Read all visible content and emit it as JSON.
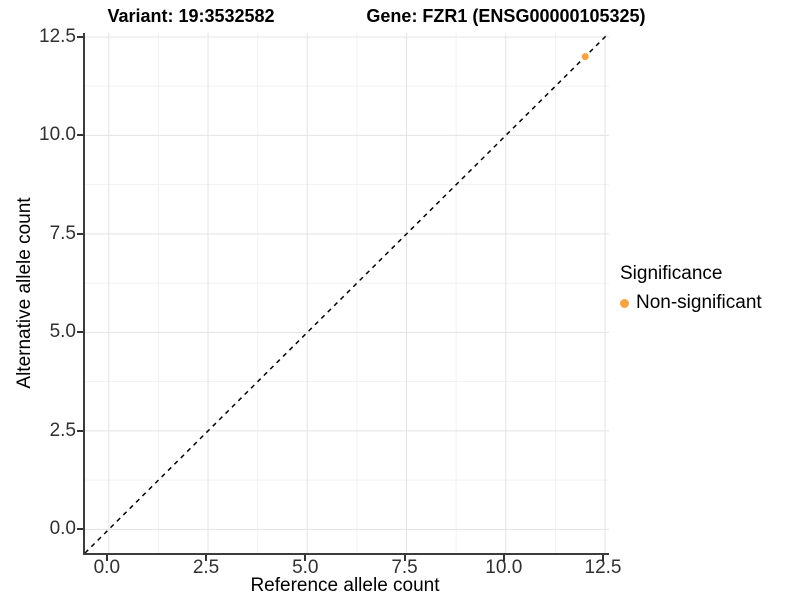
{
  "titles": {
    "variant": "Variant: 19:3532582",
    "gene": "Gene: FZR1 (ENSG00000105325)"
  },
  "chart_data": {
    "type": "scatter",
    "title_left": "Variant: 19:3532582",
    "title_right": "Gene: FZR1 (ENSG00000105325)",
    "xlabel": "Reference allele count",
    "ylabel": "Alternative allele count",
    "xlim": [
      -0.6,
      12.6
    ],
    "ylim": [
      -0.6,
      12.6
    ],
    "x_ticks": [
      0.0,
      2.5,
      5.0,
      7.5,
      10.0,
      12.5
    ],
    "x_tick_labels": [
      "0.0",
      "2.5",
      "5.0",
      "7.5",
      "10.0",
      "12.5"
    ],
    "y_ticks": [
      0.0,
      2.5,
      5.0,
      7.5,
      10.0,
      12.5
    ],
    "y_tick_labels": [
      "0.0",
      "2.5",
      "5.0",
      "7.5",
      "10.0",
      "12.5"
    ],
    "minor_ticks": [
      1.25,
      3.75,
      6.25,
      8.75,
      11.25
    ],
    "grid": true,
    "identity_line": {
      "style": "dashed",
      "color": "#000000",
      "from": [
        -0.6,
        -0.6
      ],
      "to": [
        12.6,
        12.6
      ]
    },
    "series": [
      {
        "name": "Non-significant",
        "color": "#F9A242",
        "points": [
          [
            12,
            12
          ]
        ]
      }
    ],
    "legend": {
      "title": "Significance",
      "position": "right",
      "entries": [
        {
          "label": "Non-significant",
          "color": "#F9A242"
        }
      ]
    }
  },
  "colors": {
    "background": "#ffffff",
    "grid_major": "#e3e3e3",
    "grid_minor": "#f1f1f1",
    "axis": "#3c3c3c",
    "tick_text": "#303030",
    "point": "#F9A242"
  }
}
